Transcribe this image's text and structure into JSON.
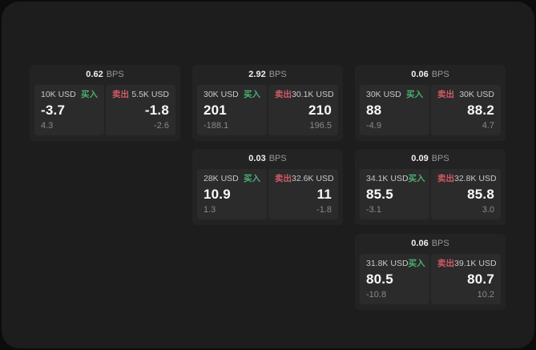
{
  "labels": {
    "bps": "BPS",
    "buy": "买入",
    "sell": "卖出"
  },
  "colors": {
    "buy_green": "#4caf72",
    "sell_red": "#d05a66",
    "panel_bg": "#1d1d1d",
    "card_bg": "#232323",
    "tile_bg": "#2b2b2b"
  },
  "cards": [
    {
      "bps": "0.62",
      "buy": {
        "size": "10K USD",
        "price": "-3.7",
        "delta": "4.3"
      },
      "sell": {
        "size": "5.5K USD",
        "price": "-1.8",
        "delta": "-2.6"
      }
    },
    {
      "bps": "2.92",
      "buy": {
        "size": "30K USD",
        "price": "201",
        "delta": "-188.1"
      },
      "sell": {
        "size": "30.1K USD",
        "price": "210",
        "delta": "196.5"
      }
    },
    {
      "bps": "0.06",
      "buy": {
        "size": "30K USD",
        "price": "88",
        "delta": "-4.9"
      },
      "sell": {
        "size": "30K USD",
        "price": "88.2",
        "delta": "4.7"
      }
    },
    {
      "bps": "0.03",
      "buy": {
        "size": "28K USD",
        "price": "10.9",
        "delta": "1.3"
      },
      "sell": {
        "size": "32.6K USD",
        "price": "11",
        "delta": "-1.8"
      }
    },
    {
      "bps": "0.09",
      "buy": {
        "size": "34.1K USD",
        "price": "85.5",
        "delta": "-3.1"
      },
      "sell": {
        "size": "32.8K USD",
        "price": "85.8",
        "delta": "3.0"
      }
    },
    {
      "bps": "0.06",
      "buy": {
        "size": "31.8K USD",
        "price": "80.5",
        "delta": "-10.8"
      },
      "sell": {
        "size": "39.1K USD",
        "price": "80.7",
        "delta": "10.2"
      }
    }
  ]
}
